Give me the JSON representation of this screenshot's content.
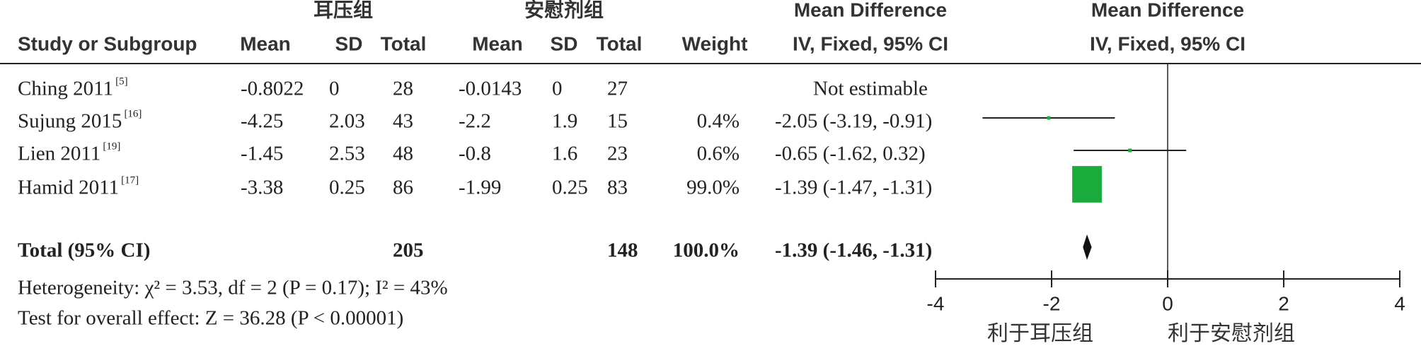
{
  "chart_data": {
    "type": "forest",
    "group_labels": [
      "耳压组",
      "安慰剂组"
    ],
    "plot_titles": [
      "Mean Difference",
      "Mean Difference"
    ],
    "columns": [
      "Study or Subgroup",
      "Mean",
      "SD",
      "Total",
      "Mean",
      "SD",
      "Total",
      "Weight",
      "IV, Fixed, 95% CI"
    ],
    "plot_method": "IV, Fixed, 95% CI",
    "studies": [
      {
        "name": "Ching 2011",
        "ref": "[5]",
        "cells": [
          "-0.8022",
          "0",
          "28",
          "-0.0143",
          "0",
          "27"
        ],
        "ci_label": "Not estimable"
      },
      {
        "name": "Sujung 2015",
        "ref": "[16]",
        "cells": [
          "-4.25",
          "2.03",
          "43",
          "-2.2",
          "1.9",
          "15"
        ],
        "weight": 0.4,
        "weight_label": "0.4%",
        "md": -2.05,
        "lower": -3.19,
        "upper": -0.91,
        "ci_label": "-2.05 (-3.19, -0.91)"
      },
      {
        "name": "Lien 2011",
        "ref": "[19]",
        "cells": [
          "-1.45",
          "2.53",
          "48",
          "-0.8",
          "1.6",
          "23"
        ],
        "weight": 0.6,
        "weight_label": "0.6%",
        "md": -0.65,
        "lower": -1.62,
        "upper": 0.32,
        "ci_label": "-0.65 (-1.62, 0.32)"
      },
      {
        "name": "Hamid 2011",
        "ref": "[17]",
        "cells": [
          "-3.38",
          "0.25",
          "86",
          "-1.99",
          "0.25",
          "83"
        ],
        "weight": 99.0,
        "weight_label": "99.0%",
        "md": -1.39,
        "lower": -1.47,
        "upper": -1.31,
        "ci_label": "-1.39 (-1.47, -1.31)"
      }
    ],
    "total": {
      "name": "Total (95% CI)",
      "exp_total": "205",
      "ctl_total": "148",
      "weight_label": "100.0%",
      "md": -1.39,
      "lower": -1.46,
      "upper": -1.31,
      "ci_label": "-1.39 (-1.46, -1.31)"
    },
    "heterogeneity": "Heterogeneity: χ² = 3.53, df = 2 (P = 0.17); I² = 43%",
    "overall_effect": "Test for overall effect: Z = 36.28 (P < 0.00001)",
    "xlim": [
      -4,
      4
    ],
    "xticks": [
      -4,
      -2,
      0,
      2,
      4
    ],
    "favours": [
      "利于耳压组",
      "利于安慰剂组"
    ],
    "color": "#1aab3c"
  }
}
